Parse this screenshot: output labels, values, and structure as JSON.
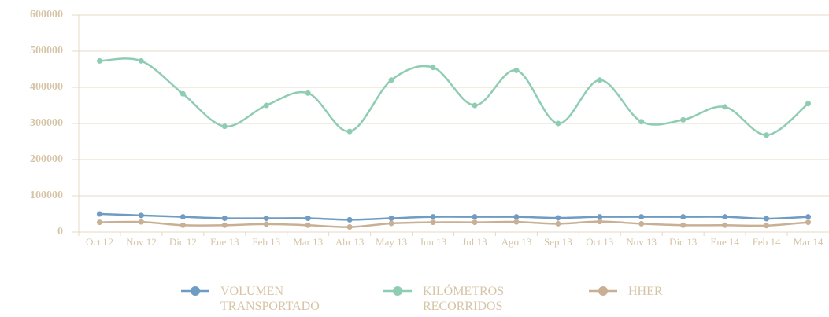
{
  "chart_data": {
    "type": "line",
    "categories": [
      "Oct 12",
      "Nov 12",
      "Dic 12",
      "Ene 13",
      "Feb 13",
      "Mar 13",
      "Abr 13",
      "May 13",
      "Jun 13",
      "Jul 13",
      "Ago 13",
      "Sep 13",
      "Oct 13",
      "Nov 13",
      "Dic 13",
      "Ene 14",
      "Feb 14",
      "Mar 14"
    ],
    "series": [
      {
        "name": "VOLUMEN TRANSPORTADO",
        "color": "#6f9cc4",
        "values": [
          50000,
          46000,
          42000,
          38000,
          38000,
          38000,
          34000,
          38000,
          42000,
          42000,
          42000,
          39000,
          42000,
          42000,
          42000,
          42000,
          37000,
          42000
        ]
      },
      {
        "name": "KILÓMETROS RECORRIDOS",
        "color": "#8fcdb3",
        "values": [
          473000,
          473000,
          382000,
          292000,
          350000,
          384000,
          278000,
          420000,
          455000,
          350000,
          447000,
          300000,
          420000,
          305000,
          310000,
          346000,
          268000,
          355000
        ]
      },
      {
        "name": "HHER",
        "color": "#c9b095",
        "values": [
          27000,
          28000,
          19000,
          19000,
          22000,
          19000,
          14000,
          24000,
          27000,
          27000,
          28000,
          23000,
          29000,
          23000,
          19000,
          19000,
          18000,
          27000
        ]
      }
    ],
    "ylim": [
      0,
      600000
    ],
    "yticks": [
      0,
      100000,
      200000,
      300000,
      400000,
      500000,
      600000
    ],
    "grid": true,
    "legend": "bottom",
    "smooth": true
  }
}
